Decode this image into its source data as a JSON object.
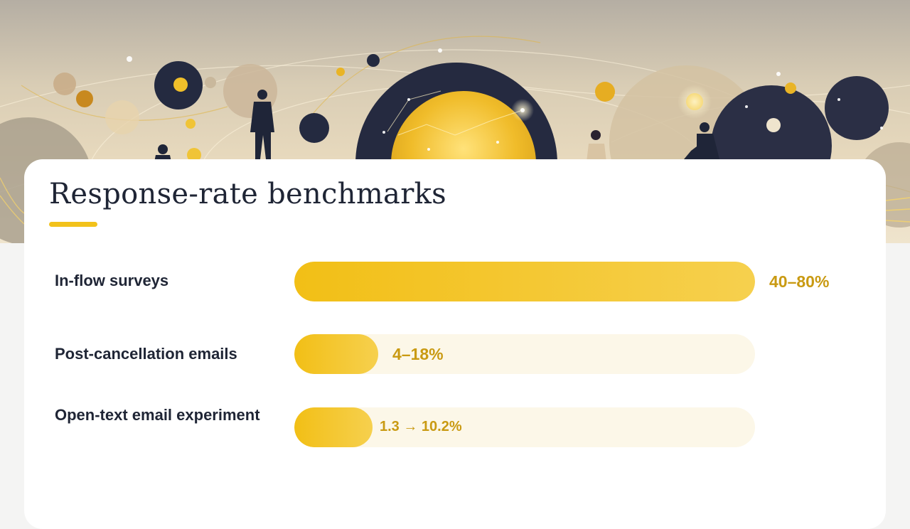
{
  "slide": {
    "title": "Response-rate benchmarks",
    "accent_color": "#f2c21b",
    "background_illustration": "abstract-planets-and-people-icon"
  },
  "chart_data": {
    "type": "bar",
    "orientation": "horizontal",
    "categories": [
      "In-flow surveys",
      "Post-cancellation emails",
      "Open-text email experiment"
    ],
    "series": [
      {
        "values": [
          80,
          18,
          10.2
        ]
      }
    ],
    "ranges": [
      {
        "low": 40,
        "high": 80
      },
      {
        "low": 4,
        "high": 18
      },
      {
        "from": 1.3,
        "to": 10.2
      }
    ],
    "data_labels": [
      "40–80%",
      "4–18%",
      "1.3 → 10.2%"
    ],
    "xlim": [
      0,
      80
    ],
    "bar_color": "#f2c21b",
    "track_color": "#fcf7e8",
    "label_color": "#c99a12",
    "grid": false,
    "legend": "none"
  }
}
